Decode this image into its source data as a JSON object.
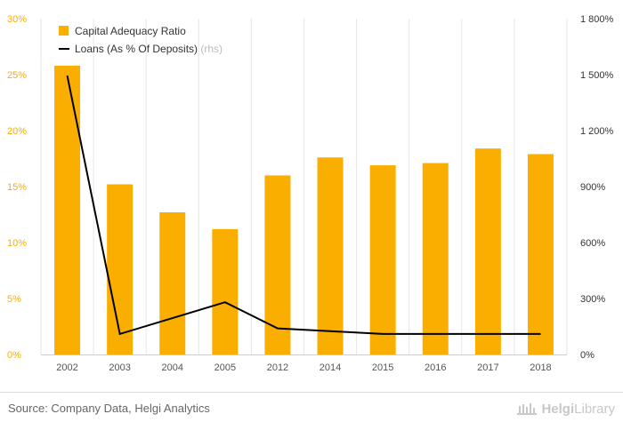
{
  "chart_data": {
    "type": "bar",
    "categories": [
      "2002",
      "2003",
      "2004",
      "2005",
      "2012",
      "2014",
      "2015",
      "2016",
      "2017",
      "2018"
    ],
    "series": [
      {
        "name": "Capital Adequacy Ratio",
        "kind": "bar",
        "axis": "left",
        "color": "#f9ae00",
        "values": [
          25.8,
          15.2,
          12.7,
          11.2,
          16.0,
          17.6,
          16.9,
          17.1,
          18.4,
          17.9
        ]
      },
      {
        "name": "Loans (As % Of Deposits)",
        "suffix": "(rhs)",
        "kind": "line",
        "axis": "right",
        "color": "#000000",
        "values": [
          1495,
          110,
          195,
          280,
          140,
          125,
          110,
          110,
          110,
          110
        ]
      }
    ],
    "y_left": {
      "range": [
        0,
        30
      ],
      "ticks": [
        "0%",
        "5%",
        "10%",
        "15%",
        "20%",
        "25%",
        "30%"
      ],
      "tick_color": "#f9ae00"
    },
    "y_right": {
      "range": [
        0,
        1800
      ],
      "ticks": [
        "0%",
        "300%",
        "600%",
        "900%",
        "1 200%",
        "1 500%",
        "1 800%"
      ]
    },
    "grid": "vertical-category-separators",
    "legend_position": "top-left"
  },
  "footer": {
    "source": "Source: Company Data, Helgi Analytics",
    "brand_bold": "Helgi",
    "brand_rest": "Library"
  }
}
